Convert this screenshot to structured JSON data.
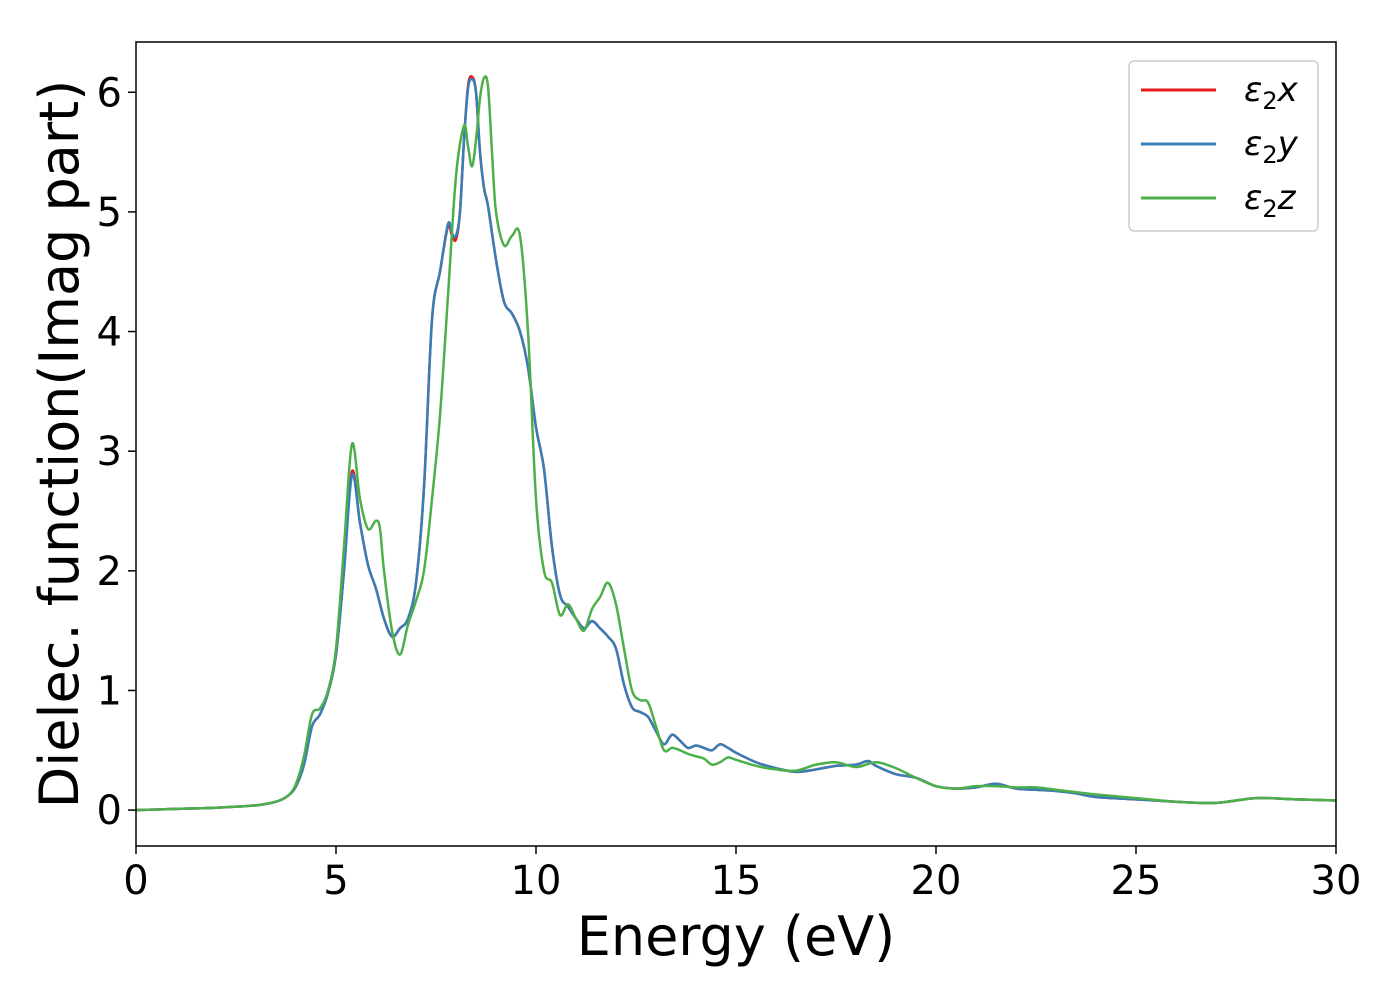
{
  "chart_data": {
    "type": "line",
    "title": "",
    "xlabel": "Energy (eV)",
    "ylabel": "Dielec. function(Imag part)",
    "xlim": [
      0,
      30
    ],
    "ylim": [
      -0.3,
      6.42
    ],
    "xticks": [
      0,
      5,
      10,
      15,
      20,
      25,
      30
    ],
    "yticks": [
      0,
      1,
      2,
      3,
      4,
      5,
      6
    ],
    "legend_position": "top-right",
    "grid": false,
    "series": [
      {
        "name": "ε₂x",
        "legend_main": "ε",
        "legend_sub": "2",
        "legend_suffix": "x",
        "color": "#e41a1c",
        "x": [
          0,
          1,
          2,
          3,
          3.5,
          3.8,
          4.0,
          4.2,
          4.4,
          4.6,
          4.8,
          5.0,
          5.2,
          5.4,
          5.6,
          5.8,
          6.0,
          6.2,
          6.4,
          6.6,
          6.8,
          7.0,
          7.2,
          7.4,
          7.6,
          7.8,
          7.9,
          8.0,
          8.1,
          8.2,
          8.3,
          8.4,
          8.5,
          8.6,
          8.7,
          8.8,
          9.0,
          9.2,
          9.4,
          9.6,
          9.8,
          10.0,
          10.2,
          10.4,
          10.6,
          10.8,
          11.0,
          11.2,
          11.4,
          11.6,
          11.8,
          12.0,
          12.2,
          12.4,
          12.6,
          12.8,
          13.0,
          13.2,
          13.4,
          13.6,
          13.8,
          14.0,
          14.2,
          14.4,
          14.6,
          14.8,
          15.0,
          15.5,
          16.0,
          16.5,
          17.0,
          17.5,
          18.0,
          18.3,
          18.5,
          19.0,
          19.5,
          20.0,
          20.5,
          21.0,
          21.5,
          22.0,
          22.5,
          23.0,
          23.5,
          24.0,
          25.0,
          26.0,
          27.0,
          28.0,
          29.0,
          30.0
        ],
        "values": [
          0.0,
          0.01,
          0.02,
          0.04,
          0.07,
          0.12,
          0.2,
          0.38,
          0.7,
          0.8,
          0.98,
          1.3,
          2.0,
          2.83,
          2.4,
          2.05,
          1.85,
          1.6,
          1.45,
          1.52,
          1.6,
          1.9,
          2.7,
          4.1,
          4.5,
          4.88,
          4.8,
          4.77,
          5.0,
          5.6,
          6.05,
          6.13,
          6.0,
          5.5,
          5.2,
          5.05,
          4.6,
          4.25,
          4.15,
          4.0,
          3.7,
          3.2,
          2.85,
          2.2,
          1.8,
          1.7,
          1.6,
          1.52,
          1.58,
          1.52,
          1.45,
          1.35,
          1.05,
          0.86,
          0.82,
          0.78,
          0.66,
          0.55,
          0.63,
          0.58,
          0.52,
          0.54,
          0.52,
          0.5,
          0.55,
          0.52,
          0.48,
          0.4,
          0.35,
          0.32,
          0.34,
          0.37,
          0.38,
          0.41,
          0.37,
          0.3,
          0.27,
          0.2,
          0.18,
          0.19,
          0.22,
          0.18,
          0.17,
          0.16,
          0.14,
          0.11,
          0.09,
          0.07,
          0.06,
          0.1,
          0.09,
          0.08
        ]
      },
      {
        "name": "ε₂y",
        "legend_main": "ε",
        "legend_sub": "2",
        "legend_suffix": "y",
        "color": "#377eb8",
        "x": [
          0,
          1,
          2,
          3,
          3.5,
          3.8,
          4.0,
          4.2,
          4.4,
          4.6,
          4.8,
          5.0,
          5.2,
          5.4,
          5.6,
          5.8,
          6.0,
          6.2,
          6.4,
          6.6,
          6.8,
          7.0,
          7.2,
          7.4,
          7.6,
          7.8,
          7.9,
          8.0,
          8.1,
          8.2,
          8.3,
          8.4,
          8.5,
          8.6,
          8.7,
          8.8,
          9.0,
          9.2,
          9.4,
          9.6,
          9.8,
          10.0,
          10.2,
          10.4,
          10.6,
          10.8,
          11.0,
          11.2,
          11.4,
          11.6,
          11.8,
          12.0,
          12.2,
          12.4,
          12.6,
          12.8,
          13.0,
          13.2,
          13.4,
          13.6,
          13.8,
          14.0,
          14.2,
          14.4,
          14.6,
          14.8,
          15.0,
          15.5,
          16.0,
          16.5,
          17.0,
          17.5,
          18.0,
          18.3,
          18.5,
          19.0,
          19.5,
          20.0,
          20.5,
          21.0,
          21.5,
          22.0,
          22.5,
          23.0,
          23.5,
          24.0,
          25.0,
          26.0,
          27.0,
          28.0,
          29.0,
          30.0
        ],
        "values": [
          0.0,
          0.01,
          0.02,
          0.04,
          0.07,
          0.12,
          0.2,
          0.38,
          0.7,
          0.8,
          0.98,
          1.3,
          2.0,
          2.8,
          2.4,
          2.05,
          1.85,
          1.6,
          1.45,
          1.52,
          1.6,
          1.9,
          2.7,
          4.1,
          4.5,
          4.9,
          4.82,
          4.8,
          5.0,
          5.6,
          6.03,
          6.11,
          6.0,
          5.5,
          5.2,
          5.05,
          4.6,
          4.25,
          4.15,
          4.0,
          3.7,
          3.2,
          2.85,
          2.2,
          1.8,
          1.7,
          1.6,
          1.52,
          1.58,
          1.52,
          1.45,
          1.35,
          1.05,
          0.86,
          0.82,
          0.78,
          0.66,
          0.55,
          0.63,
          0.58,
          0.52,
          0.54,
          0.52,
          0.5,
          0.55,
          0.52,
          0.48,
          0.4,
          0.35,
          0.32,
          0.34,
          0.37,
          0.38,
          0.41,
          0.37,
          0.3,
          0.27,
          0.2,
          0.18,
          0.19,
          0.22,
          0.18,
          0.17,
          0.16,
          0.14,
          0.11,
          0.09,
          0.07,
          0.06,
          0.1,
          0.09,
          0.08
        ]
      },
      {
        "name": "ε₂z",
        "legend_main": "ε",
        "legend_sub": "2",
        "legend_suffix": "z",
        "color": "#4daf4a",
        "x": [
          0,
          1,
          2,
          3,
          3.5,
          3.8,
          4.0,
          4.2,
          4.4,
          4.6,
          4.8,
          5.0,
          5.2,
          5.4,
          5.6,
          5.8,
          6.0,
          6.1,
          6.2,
          6.4,
          6.6,
          6.8,
          7.0,
          7.2,
          7.4,
          7.6,
          7.8,
          8.0,
          8.2,
          8.3,
          8.4,
          8.5,
          8.6,
          8.7,
          8.8,
          8.9,
          9.0,
          9.2,
          9.4,
          9.6,
          9.8,
          10.0,
          10.2,
          10.4,
          10.6,
          10.8,
          11.0,
          11.2,
          11.4,
          11.6,
          11.8,
          12.0,
          12.2,
          12.4,
          12.6,
          12.8,
          13.0,
          13.2,
          13.4,
          13.6,
          13.8,
          14.0,
          14.2,
          14.4,
          14.6,
          14.8,
          15.0,
          15.5,
          16.0,
          16.5,
          17.0,
          17.5,
          18.0,
          18.5,
          19.0,
          19.5,
          20.0,
          20.5,
          21.0,
          21.5,
          22.0,
          22.5,
          23.0,
          23.5,
          24.0,
          25.0,
          26.0,
          27.0,
          28.0,
          29.0,
          30.0
        ],
        "values": [
          0.0,
          0.01,
          0.02,
          0.04,
          0.07,
          0.12,
          0.22,
          0.45,
          0.8,
          0.85,
          1.0,
          1.35,
          2.2,
          3.06,
          2.6,
          2.35,
          2.42,
          2.35,
          2.0,
          1.5,
          1.3,
          1.55,
          1.75,
          2.0,
          2.6,
          3.3,
          4.3,
          5.3,
          5.72,
          5.55,
          5.38,
          5.6,
          5.95,
          6.12,
          6.05,
          5.5,
          5.0,
          4.72,
          4.8,
          4.8,
          4.0,
          2.6,
          2.0,
          1.9,
          1.63,
          1.72,
          1.6,
          1.5,
          1.68,
          1.78,
          1.9,
          1.72,
          1.35,
          1.0,
          0.92,
          0.9,
          0.7,
          0.5,
          0.52,
          0.5,
          0.47,
          0.45,
          0.43,
          0.38,
          0.4,
          0.44,
          0.42,
          0.37,
          0.34,
          0.33,
          0.38,
          0.4,
          0.36,
          0.4,
          0.35,
          0.27,
          0.2,
          0.18,
          0.2,
          0.2,
          0.19,
          0.19,
          0.17,
          0.15,
          0.13,
          0.1,
          0.07,
          0.06,
          0.1,
          0.09,
          0.08
        ]
      }
    ]
  }
}
